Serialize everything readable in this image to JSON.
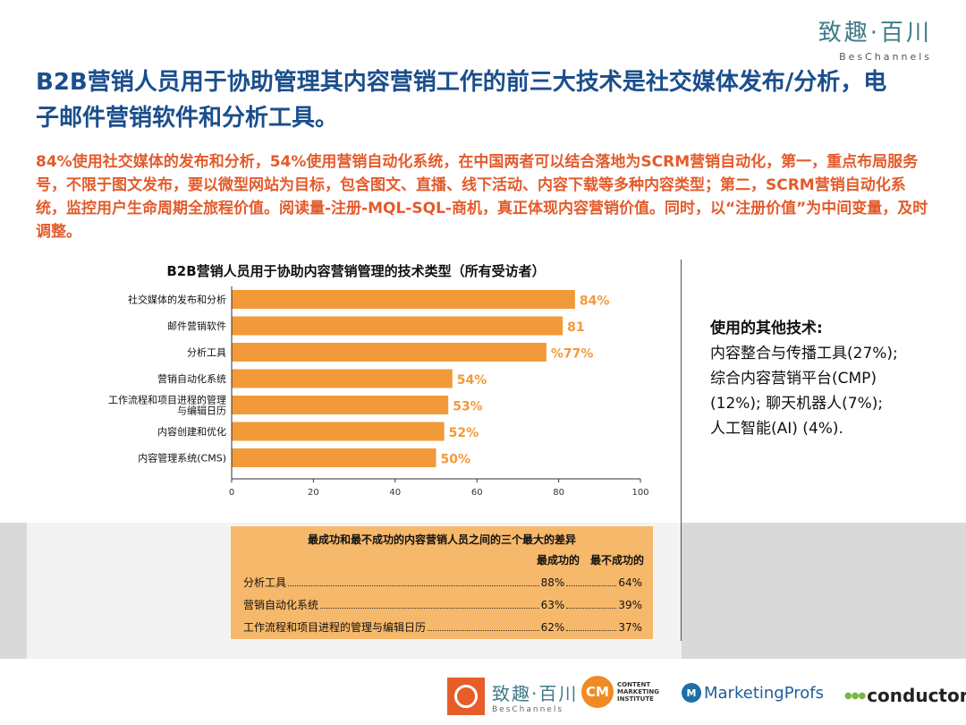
{
  "brand": {
    "name_cn": "致趣·百川",
    "name_en": "BesChannels"
  },
  "headline": "B2B营销人员用于协助管理其内容营销工作的前三大技术是社交媒体发布/分析，电子邮件营销软件和分析工具。",
  "summary": "84%使用社交媒体的发布和分析，54%使用营销自动化系统，在中国两者可以结合落地为SCRM营销自动化，第一，重点布局服务号，不限于图文发布，要以微型网站为目标，包含图文、直播、线下活动、内容下载等多种内容类型；第二，SCRM营销自动化系统，监控用户生命周期全旅程价值。阅读量-注册-MQL-SQL-商机，真正体现内容营销价值。同时，以“注册价值”为中间变量，及时调整。",
  "chart_data": {
    "type": "bar",
    "orientation": "horizontal",
    "title": "B2B营销人员用于协助内容营销管理的技术类型（所有受访者）",
    "categories": [
      "社交媒体的发布和分析",
      "邮件营销软件",
      "分析工具",
      "营销自动化系统",
      "工作流程和项目进程的管理与编辑日历",
      "内容创建和优化",
      "内容管理系统(CMS)"
    ],
    "category_lines": [
      [
        "社交媒体的发布和分析"
      ],
      [
        "邮件营销软件"
      ],
      [
        "分析工具"
      ],
      [
        "营销自动化系统"
      ],
      [
        "工作流程和项目进程的管理",
        "与编辑日历"
      ],
      [
        "内容创建和优化"
      ],
      [
        "内容管理系统(CMS)"
      ]
    ],
    "values": [
      84,
      81,
      77,
      54,
      53,
      52,
      50
    ],
    "data_labels": [
      "84%",
      "81",
      "%77%",
      "54%",
      "53%",
      "52%",
      "50%"
    ],
    "xlim": [
      0,
      100
    ],
    "xticks": [
      0,
      20,
      40,
      60,
      80,
      100
    ],
    "bar_color": "#f29a3a",
    "label_color": "#f29a3a",
    "grid": false,
    "legend": "none"
  },
  "other_tech": {
    "title": "使用的其他技术:",
    "lines": [
      "内容整合与传播工具(27%);",
      "综合内容营销平台(CMP)",
      "(12%); 聊天机器人(7%);",
      "人工智能(AI) (4%)."
    ]
  },
  "difference_table": {
    "title": "最成功和最不成功的内容营销人员之间的三个最大的差异",
    "col_headers": [
      "最成功的",
      "最不成功的"
    ],
    "rows": [
      {
        "label": "分析工具",
        "most": "88%",
        "least": "64%"
      },
      {
        "label": "营销自动化系统",
        "most": "63%",
        "least": "39%"
      },
      {
        "label": "工作流程和项目进程的管理与编辑日历",
        "most": "62%",
        "least": "37%"
      }
    ],
    "background": "#f6b86a"
  },
  "logos": {
    "beschannels_cn": "致趣·百川",
    "beschannels_en": "BesChannels",
    "cmi_mark": "CM",
    "cmi_lines": [
      "CONTENT",
      "MARKETING",
      "INSTITUTE"
    ],
    "marketingprofs": "MarketingProfs",
    "conductor": "conductor"
  }
}
